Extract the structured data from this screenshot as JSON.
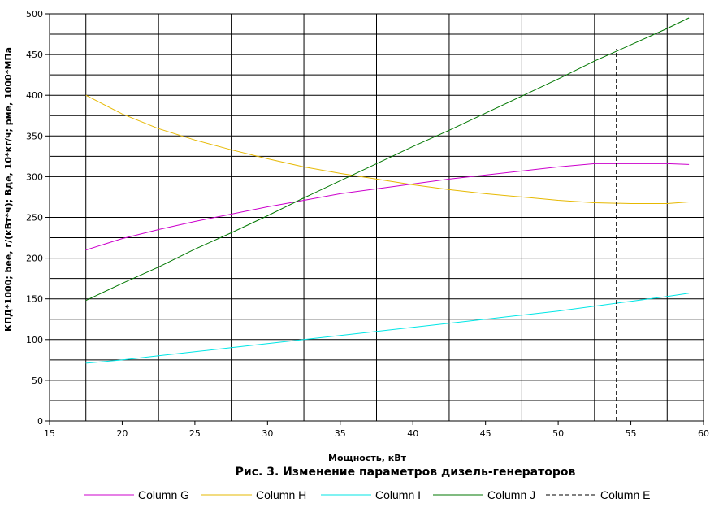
{
  "chart_data": {
    "type": "line",
    "title": "Рис. 3. Изменение параметров дизель-генераторов",
    "xlabel": "Мощность, кВт",
    "ylabel": "КПД*1000;  bee, г/(кВт*ч);  Вде, 10*кг/ч;  рме, 1000*МПа",
    "xlim": [
      15,
      60
    ],
    "ylim": [
      0,
      500
    ],
    "x_ticks": [
      15,
      20,
      25,
      30,
      35,
      40,
      45,
      50,
      55,
      60
    ],
    "y_ticks": [
      0,
      50,
      100,
      150,
      200,
      250,
      300,
      350,
      400,
      450,
      500
    ],
    "grid": true,
    "legend_position": "bottom",
    "series": [
      {
        "name": "Column G",
        "color": "#cc00cc",
        "x": [
          17.5,
          20,
          22.5,
          25,
          27.5,
          30,
          32.5,
          35,
          37.5,
          40,
          42.5,
          45,
          47.5,
          50,
          52.5,
          55,
          57.5,
          59
        ],
        "y": [
          210,
          224,
          235,
          245,
          254,
          263,
          271,
          279,
          285,
          291,
          297,
          302,
          307,
          312,
          316,
          316,
          316,
          315
        ]
      },
      {
        "name": "Column H",
        "color": "#e6b800",
        "x": [
          17.5,
          20,
          22.5,
          25,
          27.5,
          30,
          32.5,
          35,
          37.5,
          40,
          42.5,
          45,
          47.5,
          50,
          52.5,
          55,
          57.5,
          59
        ],
        "y": [
          400,
          377,
          359,
          345,
          333,
          322,
          312,
          304,
          297,
          290,
          284,
          279,
          275,
          271,
          268,
          267,
          267,
          269
        ]
      },
      {
        "name": "Column I",
        "color": "#00e6e6",
        "x": [
          17.5,
          20,
          22.5,
          25,
          27.5,
          30,
          32.5,
          35,
          37.5,
          40,
          42.5,
          45,
          47.5,
          50,
          52.5,
          55,
          57.5,
          59
        ],
        "y": [
          71,
          75,
          80,
          85,
          90,
          95,
          100,
          105,
          110,
          115,
          120,
          125,
          130,
          135,
          141,
          147,
          153,
          157
        ]
      },
      {
        "name": "Column J",
        "color": "#007700",
        "x": [
          17.5,
          20,
          22.5,
          25,
          27.5,
          30,
          32.5,
          35,
          37.5,
          40,
          42.5,
          45,
          47.5,
          50,
          52.5,
          55,
          57.5,
          59
        ],
        "y": [
          148,
          169,
          189,
          211,
          231,
          252,
          274,
          295,
          316,
          337,
          357,
          378,
          399,
          420,
          442,
          462,
          482,
          495
        ]
      },
      {
        "name": "Column E",
        "color": "#000000",
        "dashed": true,
        "x": [
          54,
          54
        ],
        "y": [
          0,
          457
        ]
      }
    ]
  }
}
